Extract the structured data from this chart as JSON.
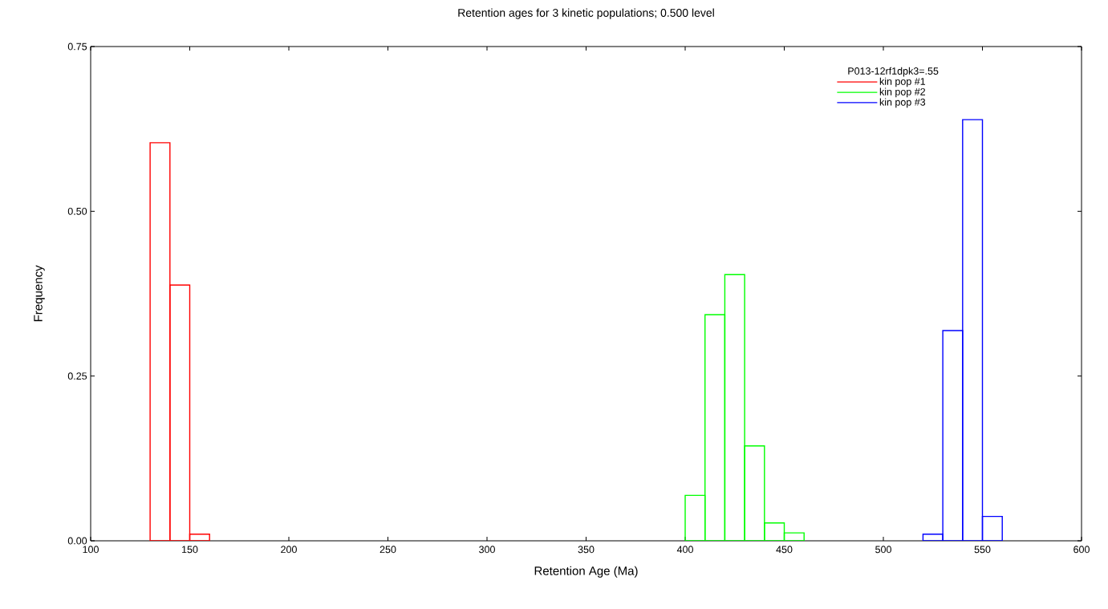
{
  "chart_data": {
    "type": "histogram",
    "title": "Retention ages for 3 kinetic populations; 0.500 level",
    "xlabel": "Retention Age (Ma)",
    "ylabel": "Frequency",
    "legend_title": "P013-12rf1dpk3=.55",
    "xlim": [
      100,
      600
    ],
    "ylim": [
      0,
      0.75
    ],
    "xticks": [
      {
        "value": 100,
        "label": "100"
      },
      {
        "value": 150,
        "label": "150"
      },
      {
        "value": 200,
        "label": "200"
      },
      {
        "value": 250,
        "label": "250"
      },
      {
        "value": 300,
        "label": "300"
      },
      {
        "value": 350,
        "label": "350"
      },
      {
        "value": 400,
        "label": "400"
      },
      {
        "value": 450,
        "label": "450"
      },
      {
        "value": 500,
        "label": "500"
      },
      {
        "value": 550,
        "label": "550"
      },
      {
        "value": 600,
        "label": "600"
      }
    ],
    "yticks": [
      {
        "value": 0,
        "label": "0.00"
      },
      {
        "value": 0.25,
        "label": "0.25"
      },
      {
        "value": 0.5,
        "label": "0.50"
      },
      {
        "value": 0.75,
        "label": "0.75"
      }
    ],
    "grid": false,
    "legend": "top right",
    "bins": [
      130,
      140,
      150,
      160,
      170,
      180,
      190,
      200,
      210,
      220,
      230,
      240,
      250,
      260,
      270,
      280,
      290,
      300,
      310,
      320,
      330,
      340,
      350,
      360,
      370,
      380,
      390,
      400,
      410,
      420,
      430,
      440,
      450,
      460,
      470,
      480,
      490,
      500,
      510,
      520,
      530,
      540,
      550,
      560
    ],
    "series": [
      {
        "name": "kin pop #1",
        "color": "#ff0000",
        "values": [
          0.604,
          0.388,
          0.01,
          null,
          null,
          null,
          null,
          null,
          null,
          null,
          null,
          null,
          null,
          null,
          null,
          null,
          null,
          null,
          null,
          null,
          null,
          null,
          null,
          null,
          null,
          null,
          null,
          null,
          null,
          null,
          null,
          null,
          null,
          null,
          null,
          null,
          null,
          null,
          null,
          null,
          null,
          null,
          null
        ]
      },
      {
        "name": "kin pop #2",
        "color": "#00ff00",
        "values": [
          null,
          null,
          null,
          null,
          null,
          null,
          null,
          null,
          null,
          null,
          null,
          null,
          null,
          null,
          null,
          null,
          null,
          null,
          null,
          null,
          null,
          null,
          null,
          null,
          null,
          null,
          null,
          0.069,
          0.343,
          0.404,
          0.144,
          0.027,
          0.012,
          null,
          null,
          null,
          null,
          null,
          null,
          null,
          null,
          null,
          null
        ]
      },
      {
        "name": "kin pop #3",
        "color": "#0000ff",
        "values": [
          null,
          null,
          null,
          null,
          null,
          null,
          null,
          null,
          null,
          null,
          null,
          null,
          null,
          null,
          null,
          null,
          null,
          null,
          null,
          null,
          null,
          null,
          null,
          null,
          null,
          null,
          null,
          null,
          null,
          null,
          null,
          null,
          null,
          null,
          null,
          null,
          null,
          null,
          null,
          0.01,
          0.319,
          0.639,
          0.037
        ]
      }
    ]
  }
}
